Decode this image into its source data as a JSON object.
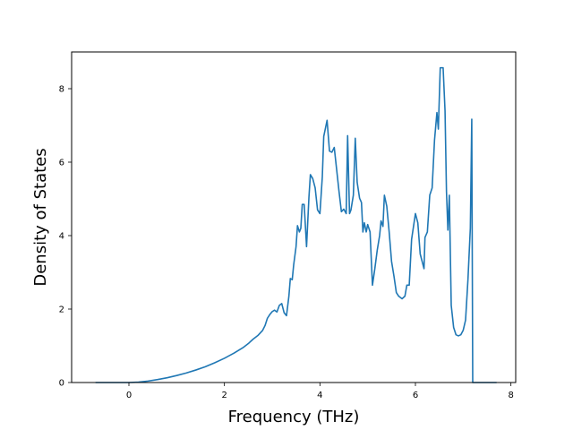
{
  "chart_data": {
    "type": "line",
    "title": "",
    "xlabel": "Frequency (THz)",
    "ylabel": "Density of States",
    "xlim": [
      -1.2,
      8.1
    ],
    "ylim": [
      0,
      9.0
    ],
    "xticks": [
      0,
      2,
      4,
      6,
      8
    ],
    "yticks": [
      0,
      2,
      4,
      6,
      8
    ],
    "grid": false,
    "legend": "none",
    "series": [
      {
        "color": "#1f77b4",
        "points": [
          [
            -0.7,
            0.0
          ],
          [
            0.0,
            0.0
          ],
          [
            0.2,
            0.01
          ],
          [
            0.4,
            0.04
          ],
          [
            0.6,
            0.08
          ],
          [
            0.8,
            0.13
          ],
          [
            1.0,
            0.19
          ],
          [
            1.2,
            0.26
          ],
          [
            1.4,
            0.34
          ],
          [
            1.6,
            0.43
          ],
          [
            1.8,
            0.54
          ],
          [
            2.0,
            0.66
          ],
          [
            2.2,
            0.8
          ],
          [
            2.4,
            0.96
          ],
          [
            2.5,
            1.06
          ],
          [
            2.6,
            1.18
          ],
          [
            2.7,
            1.28
          ],
          [
            2.8,
            1.42
          ],
          [
            2.85,
            1.55
          ],
          [
            2.9,
            1.75
          ],
          [
            2.95,
            1.85
          ],
          [
            3.0,
            1.93
          ],
          [
            3.05,
            1.97
          ],
          [
            3.1,
            1.92
          ],
          [
            3.15,
            2.1
          ],
          [
            3.2,
            2.15
          ],
          [
            3.25,
            1.9
          ],
          [
            3.3,
            1.82
          ],
          [
            3.35,
            2.35
          ],
          [
            3.38,
            2.83
          ],
          [
            3.42,
            2.8
          ],
          [
            3.45,
            3.2
          ],
          [
            3.5,
            3.7
          ],
          [
            3.53,
            4.27
          ],
          [
            3.57,
            4.1
          ],
          [
            3.6,
            4.2
          ],
          [
            3.63,
            4.85
          ],
          [
            3.67,
            4.85
          ],
          [
            3.72,
            3.7
          ],
          [
            3.77,
            5.05
          ],
          [
            3.8,
            5.66
          ],
          [
            3.85,
            5.55
          ],
          [
            3.9,
            5.3
          ],
          [
            3.95,
            4.7
          ],
          [
            4.0,
            4.6
          ],
          [
            4.05,
            5.6
          ],
          [
            4.08,
            6.7
          ],
          [
            4.15,
            7.14
          ],
          [
            4.2,
            6.3
          ],
          [
            4.25,
            6.27
          ],
          [
            4.3,
            6.4
          ],
          [
            4.35,
            5.8
          ],
          [
            4.4,
            5.2
          ],
          [
            4.45,
            4.65
          ],
          [
            4.5,
            4.72
          ],
          [
            4.55,
            4.6
          ],
          [
            4.58,
            6.72
          ],
          [
            4.62,
            4.6
          ],
          [
            4.65,
            4.7
          ],
          [
            4.7,
            5.1
          ],
          [
            4.74,
            6.65
          ],
          [
            4.78,
            5.45
          ],
          [
            4.83,
            5.02
          ],
          [
            4.87,
            4.9
          ],
          [
            4.9,
            4.1
          ],
          [
            4.93,
            4.35
          ],
          [
            4.97,
            4.1
          ],
          [
            5.0,
            4.3
          ],
          [
            5.05,
            4.1
          ],
          [
            5.1,
            2.65
          ],
          [
            5.15,
            3.1
          ],
          [
            5.2,
            3.6
          ],
          [
            5.25,
            4.0
          ],
          [
            5.28,
            4.4
          ],
          [
            5.32,
            4.25
          ],
          [
            5.35,
            5.1
          ],
          [
            5.4,
            4.8
          ],
          [
            5.45,
            4.1
          ],
          [
            5.5,
            3.3
          ],
          [
            5.55,
            2.9
          ],
          [
            5.6,
            2.45
          ],
          [
            5.65,
            2.35
          ],
          [
            5.72,
            2.28
          ],
          [
            5.78,
            2.35
          ],
          [
            5.82,
            2.65
          ],
          [
            5.87,
            2.65
          ],
          [
            5.92,
            3.9
          ],
          [
            6.0,
            4.6
          ],
          [
            6.05,
            4.35
          ],
          [
            6.1,
            3.5
          ],
          [
            6.15,
            3.25
          ],
          [
            6.18,
            3.1
          ],
          [
            6.2,
            3.95
          ],
          [
            6.25,
            4.1
          ],
          [
            6.3,
            5.1
          ],
          [
            6.35,
            5.3
          ],
          [
            6.4,
            6.6
          ],
          [
            6.45,
            7.35
          ],
          [
            6.48,
            6.9
          ],
          [
            6.52,
            8.57
          ],
          [
            6.58,
            8.57
          ],
          [
            6.62,
            7.4
          ],
          [
            6.65,
            5.2
          ],
          [
            6.68,
            4.15
          ],
          [
            6.71,
            5.1
          ],
          [
            6.75,
            2.1
          ],
          [
            6.8,
            1.5
          ],
          [
            6.85,
            1.3
          ],
          [
            6.9,
            1.27
          ],
          [
            6.95,
            1.3
          ],
          [
            7.0,
            1.42
          ],
          [
            7.05,
            1.7
          ],
          [
            7.1,
            2.8
          ],
          [
            7.15,
            4.2
          ],
          [
            7.18,
            7.17
          ],
          [
            7.2,
            0.0
          ],
          [
            7.3,
            0.0
          ],
          [
            7.5,
            0.0
          ],
          [
            7.7,
            0.0
          ]
        ]
      }
    ]
  }
}
